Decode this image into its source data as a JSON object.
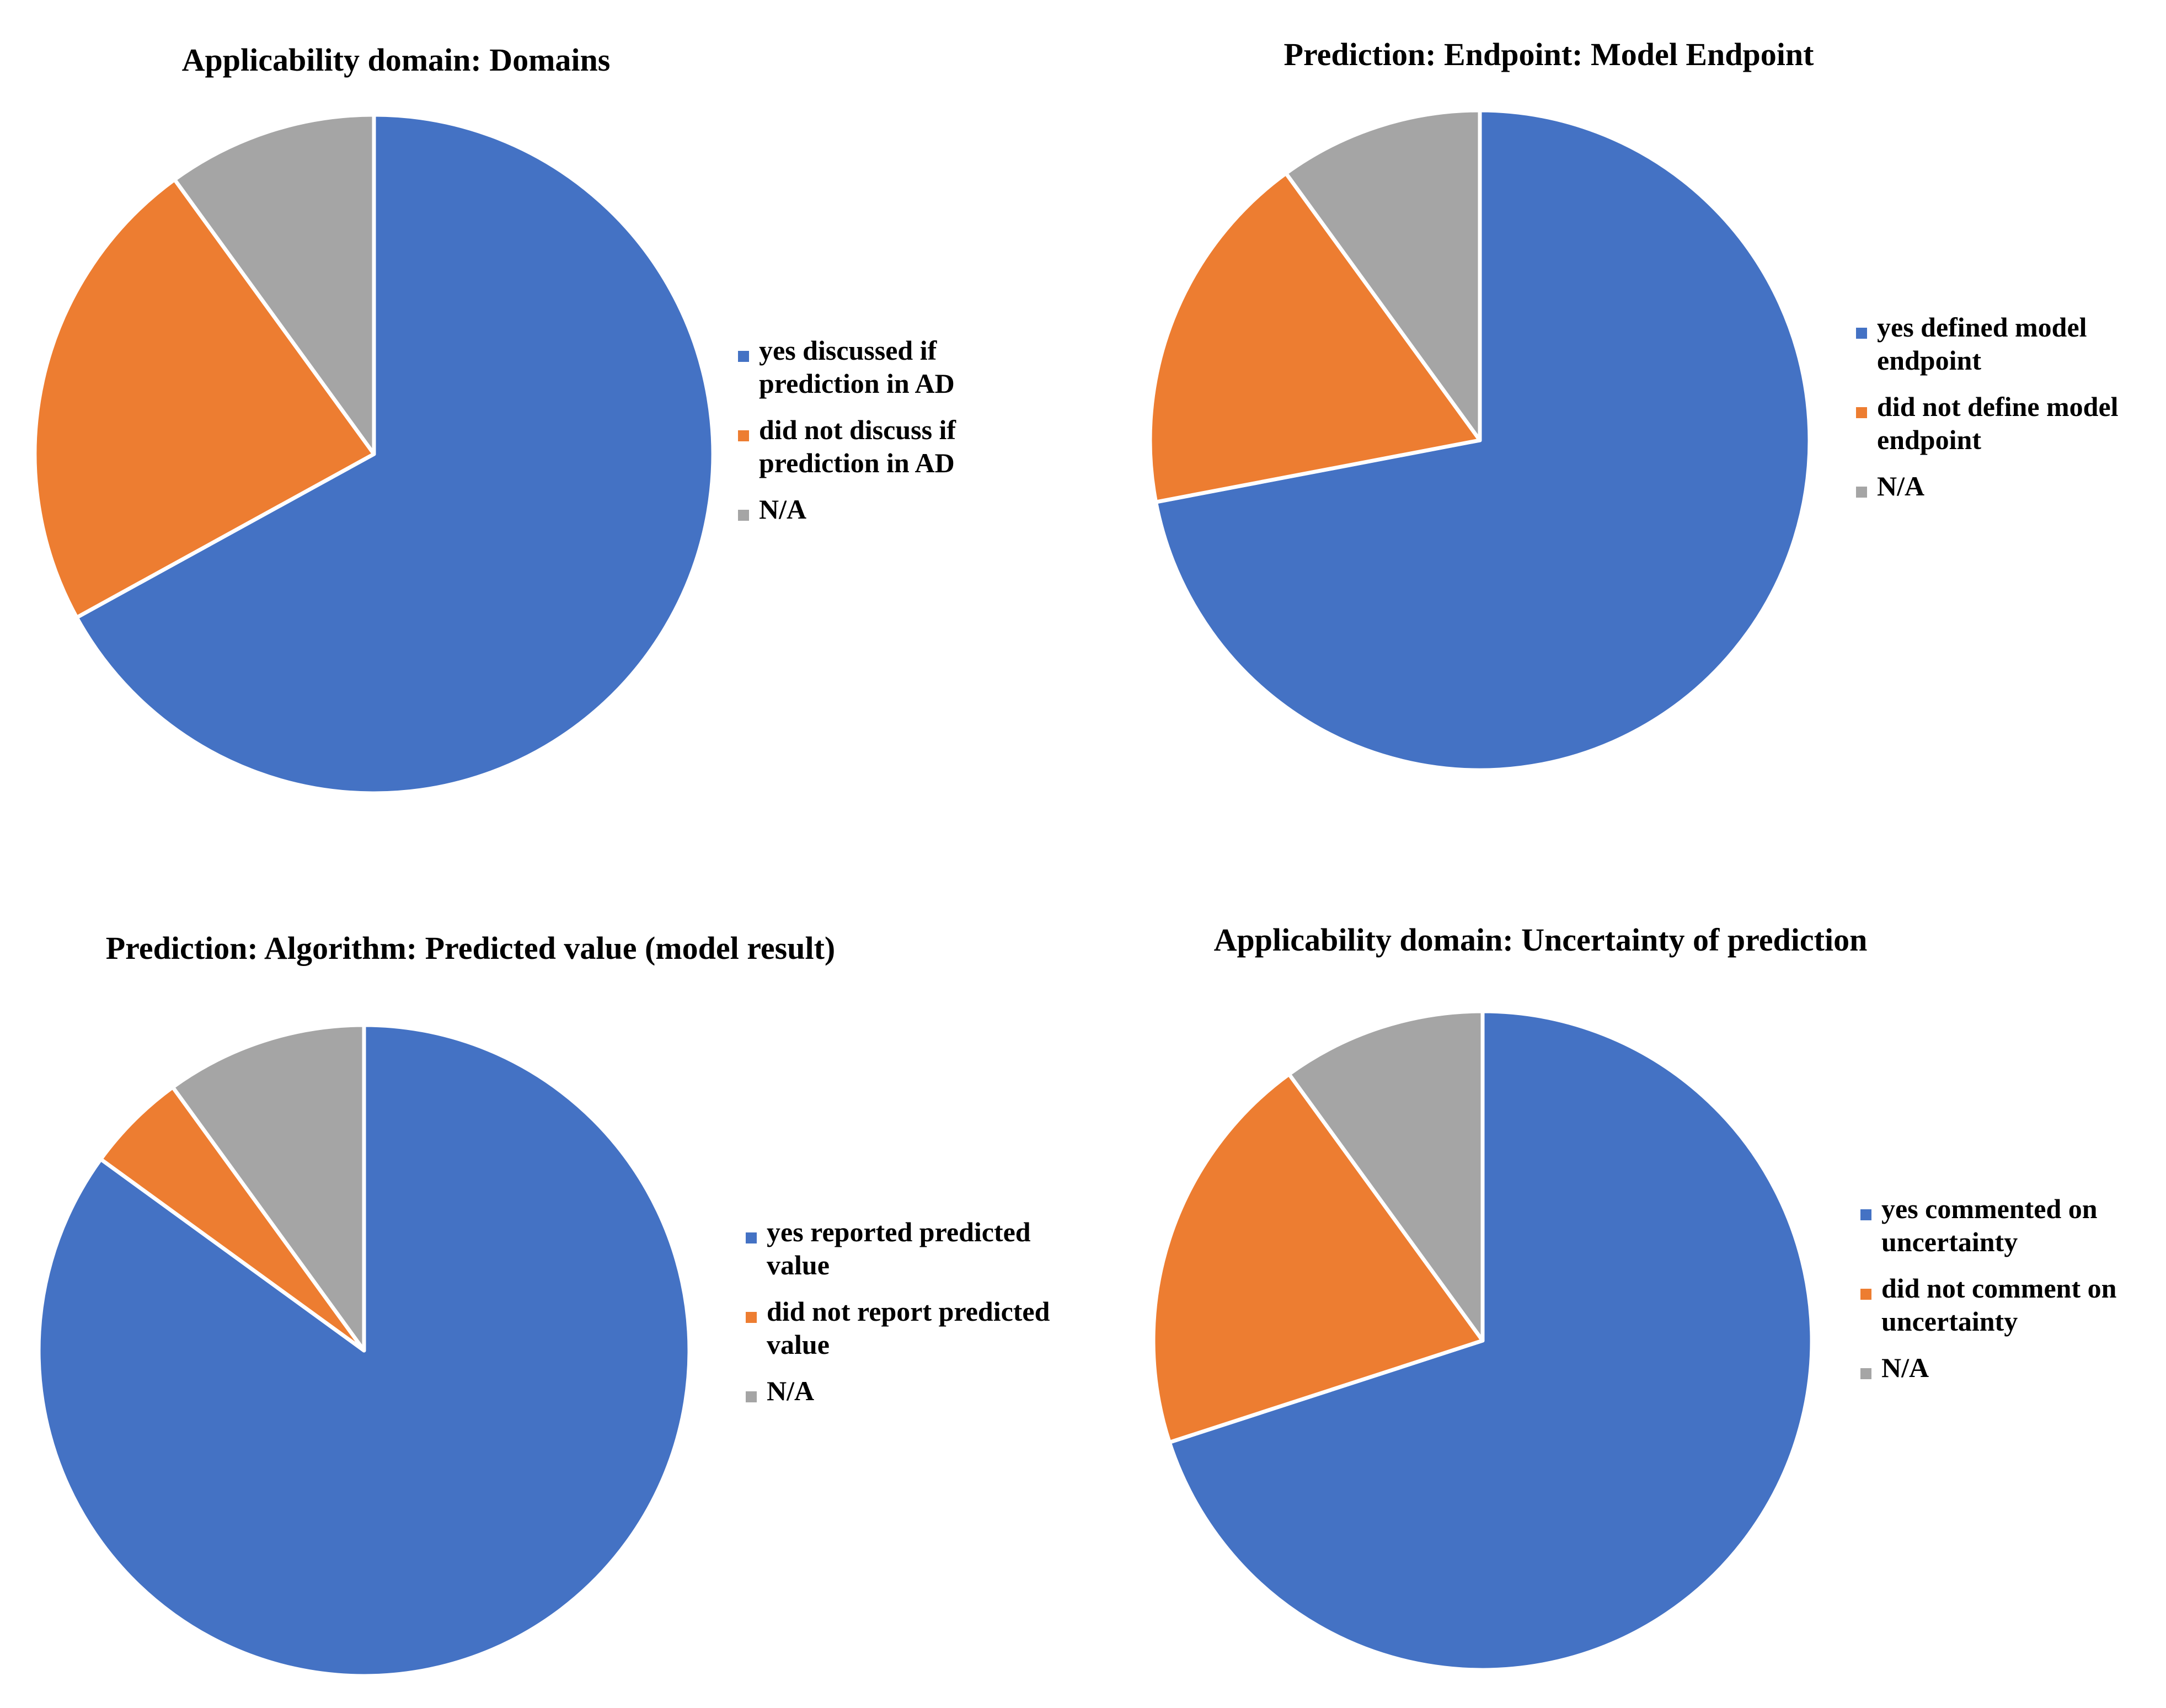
{
  "chart_data": [
    {
      "type": "pie",
      "title": "Applicability domain: Domains",
      "start_angle_deg": 90,
      "direction": "clockwise",
      "legend_position": "right",
      "slices": [
        {
          "label": "yes discussed if prediction in AD",
          "label_lines": [
            "yes discussed if",
            "prediction in AD"
          ],
          "value": 67,
          "color": "#4472C4"
        },
        {
          "label": "did not discuss if prediction in AD",
          "label_lines": [
            "did not discuss if",
            "prediction in AD"
          ],
          "value": 23,
          "color": "#ED7D31"
        },
        {
          "label": "N/A",
          "label_lines": [
            "N/A"
          ],
          "value": 10,
          "color": "#A5A5A5"
        }
      ]
    },
    {
      "type": "pie",
      "title": "Prediction: Endpoint: Model Endpoint",
      "start_angle_deg": 90,
      "direction": "clockwise",
      "legend_position": "right",
      "slices": [
        {
          "label": "yes defined model endpoint",
          "label_lines": [
            "yes defined model",
            "endpoint"
          ],
          "value": 72,
          "color": "#4472C4"
        },
        {
          "label": "did not define model endpoint",
          "label_lines": [
            "did not define model",
            "endpoint"
          ],
          "value": 18,
          "color": "#ED7D31"
        },
        {
          "label": "N/A",
          "label_lines": [
            "N/A"
          ],
          "value": 10,
          "color": "#A5A5A5"
        }
      ]
    },
    {
      "type": "pie",
      "title": "Prediction: Algorithm: Predicted value (model result)",
      "start_angle_deg": 90,
      "direction": "clockwise",
      "legend_position": "right",
      "slices": [
        {
          "label": "yes reported predicted value",
          "label_lines": [
            "yes reported predicted",
            "value"
          ],
          "value": 85,
          "color": "#4472C4"
        },
        {
          "label": "did not report predicted value",
          "label_lines": [
            "did not report predicted",
            "value"
          ],
          "value": 5,
          "color": "#ED7D31"
        },
        {
          "label": "N/A",
          "label_lines": [
            "N/A"
          ],
          "value": 10,
          "color": "#A5A5A5"
        }
      ]
    },
    {
      "type": "pie",
      "title": "Applicability domain: Uncertainty of prediction",
      "start_angle_deg": 90,
      "direction": "clockwise",
      "legend_position": "right",
      "slices": [
        {
          "label": "yes commented on uncertainty",
          "label_lines": [
            "yes commented on",
            "uncertainty"
          ],
          "value": 70,
          "color": "#4472C4"
        },
        {
          "label": "did not comment on uncertainty",
          "label_lines": [
            "did not comment on",
            "uncertainty"
          ],
          "value": 20,
          "color": "#ED7D31"
        },
        {
          "label": "N/A",
          "label_lines": [
            "N/A"
          ],
          "value": 10,
          "color": "#A5A5A5"
        }
      ]
    }
  ]
}
